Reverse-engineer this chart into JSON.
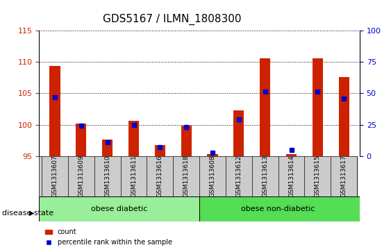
{
  "title": "GDS5167 / ILMN_1808300",
  "samples": [
    "GSM1313607",
    "GSM1313609",
    "GSM1313610",
    "GSM1313611",
    "GSM1313616",
    "GSM1313618",
    "GSM1313608",
    "GSM1313612",
    "GSM1313613",
    "GSM1313614",
    "GSM1313615",
    "GSM1313617"
  ],
  "count_values": [
    109.3,
    100.2,
    97.6,
    100.6,
    96.8,
    99.8,
    95.3,
    102.3,
    110.5,
    95.3,
    110.5,
    107.6
  ],
  "percentile_values": [
    47,
    24,
    11,
    25,
    7,
    23,
    3,
    29,
    51,
    5,
    51,
    46
  ],
  "ylim_left": [
    95,
    115
  ],
  "ylim_right": [
    0,
    100
  ],
  "yticks_left": [
    95,
    100,
    105,
    110,
    115
  ],
  "yticks_right": [
    0,
    25,
    50,
    75,
    100
  ],
  "bar_color": "#CC2200",
  "square_color": "#0000CC",
  "background_labels": "#CCCCCC",
  "group1_label": "obese diabetic",
  "group2_label": "obese non-diabetic",
  "group1_color": "#99EE99",
  "group2_color": "#55DD55",
  "group1_count": 6,
  "group2_count": 6,
  "disease_label": "disease state",
  "legend_count_label": "count",
  "legend_pct_label": "percentile rank within the sample"
}
